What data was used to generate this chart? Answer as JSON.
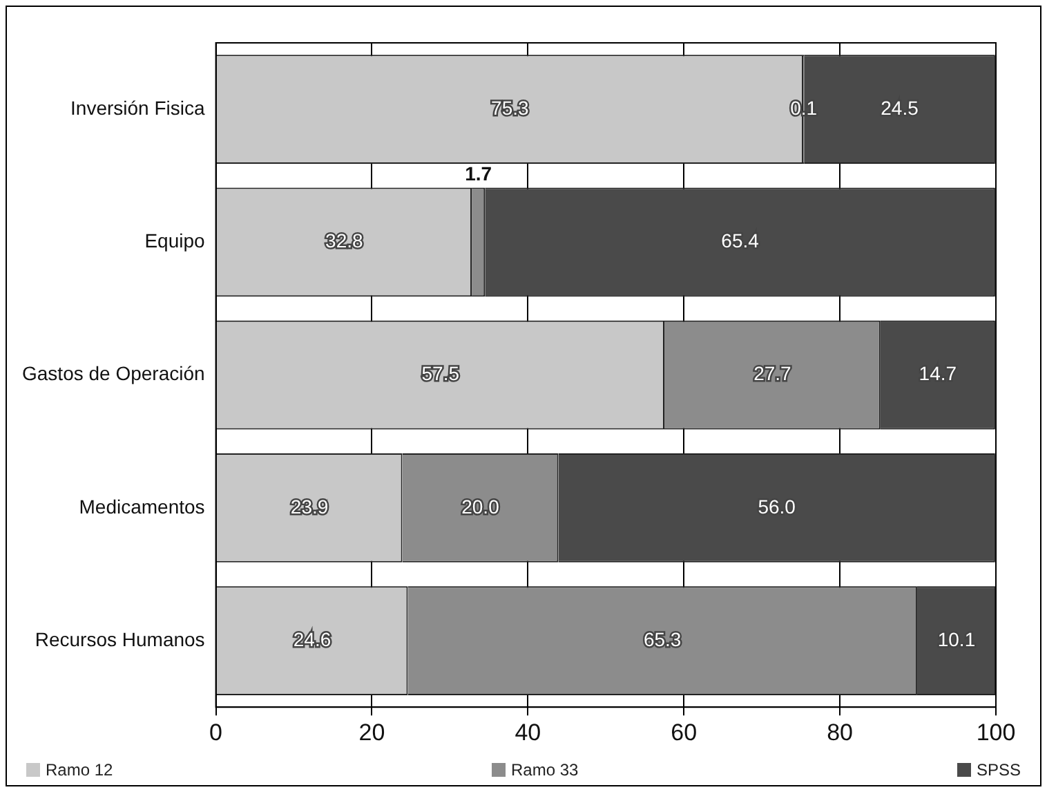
{
  "chart_data": {
    "type": "bar",
    "orientation": "horizontal",
    "stacked": true,
    "categories": [
      "Inversión Fisica",
      "Equipo",
      "Gastos de Operación",
      "Medicamentos",
      "Recursos Humanos"
    ],
    "series": [
      {
        "name": "Ramo 12",
        "color": "#c8c8c8",
        "values": [
          75.3,
          32.8,
          57.5,
          23.9,
          24.6
        ],
        "value_labels": [
          "75.3",
          "32.8",
          "57.5",
          "23.9",
          "24.6"
        ]
      },
      {
        "name": "Ramo 33",
        "color": "#8c8c8c",
        "values": [
          0.1,
          1.7,
          27.7,
          20.0,
          65.3
        ],
        "value_labels": [
          "0.1",
          "1.7",
          "27.7",
          "20.0",
          "65.3"
        ]
      },
      {
        "name": "SPSS",
        "color": "#4a4a4a",
        "values": [
          24.5,
          65.4,
          14.7,
          56.0,
          10.1
        ],
        "value_labels": [
          "24.5",
          "65.4",
          "14.7",
          "56.0",
          "10.1"
        ]
      }
    ],
    "xlim": [
      0,
      100
    ],
    "xticks": [
      0,
      20,
      40,
      60,
      80,
      100
    ],
    "grid": "x",
    "legend": "bottom"
  }
}
